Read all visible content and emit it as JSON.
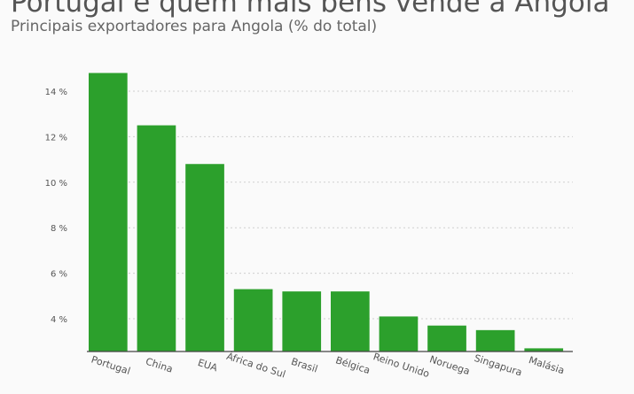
{
  "title": "Portugal é quem mais bens vende a Angola",
  "subtitle": "Principais exportadores para Angola (% do total)",
  "colors": {
    "bar": "#2ca02c",
    "text": "#555555",
    "grid": "#cfcfcf"
  },
  "chart_data": {
    "type": "bar",
    "title": "Portugal é quem mais bens vende a Angola",
    "subtitle": "Principais exportadores para Angola (% do total)",
    "categories": [
      "Portugal",
      "China",
      "EUA",
      "África do Sul",
      "Brasil",
      "Bélgica",
      "Reino Unido",
      "Noruega",
      "Singapura",
      "Malásia"
    ],
    "values": [
      14.8,
      12.5,
      10.8,
      5.3,
      5.2,
      5.2,
      4.1,
      3.7,
      3.5,
      2.7
    ],
    "y_ticks": [
      4,
      6,
      8,
      10,
      12,
      14
    ],
    "y_tick_labels": [
      "4 %",
      "6 %",
      "8 %",
      "10 %",
      "12 %",
      "14 %"
    ],
    "ylim": [
      2.5,
      15
    ],
    "grid": true,
    "legend": "none",
    "xlabel": "",
    "ylabel": ""
  }
}
